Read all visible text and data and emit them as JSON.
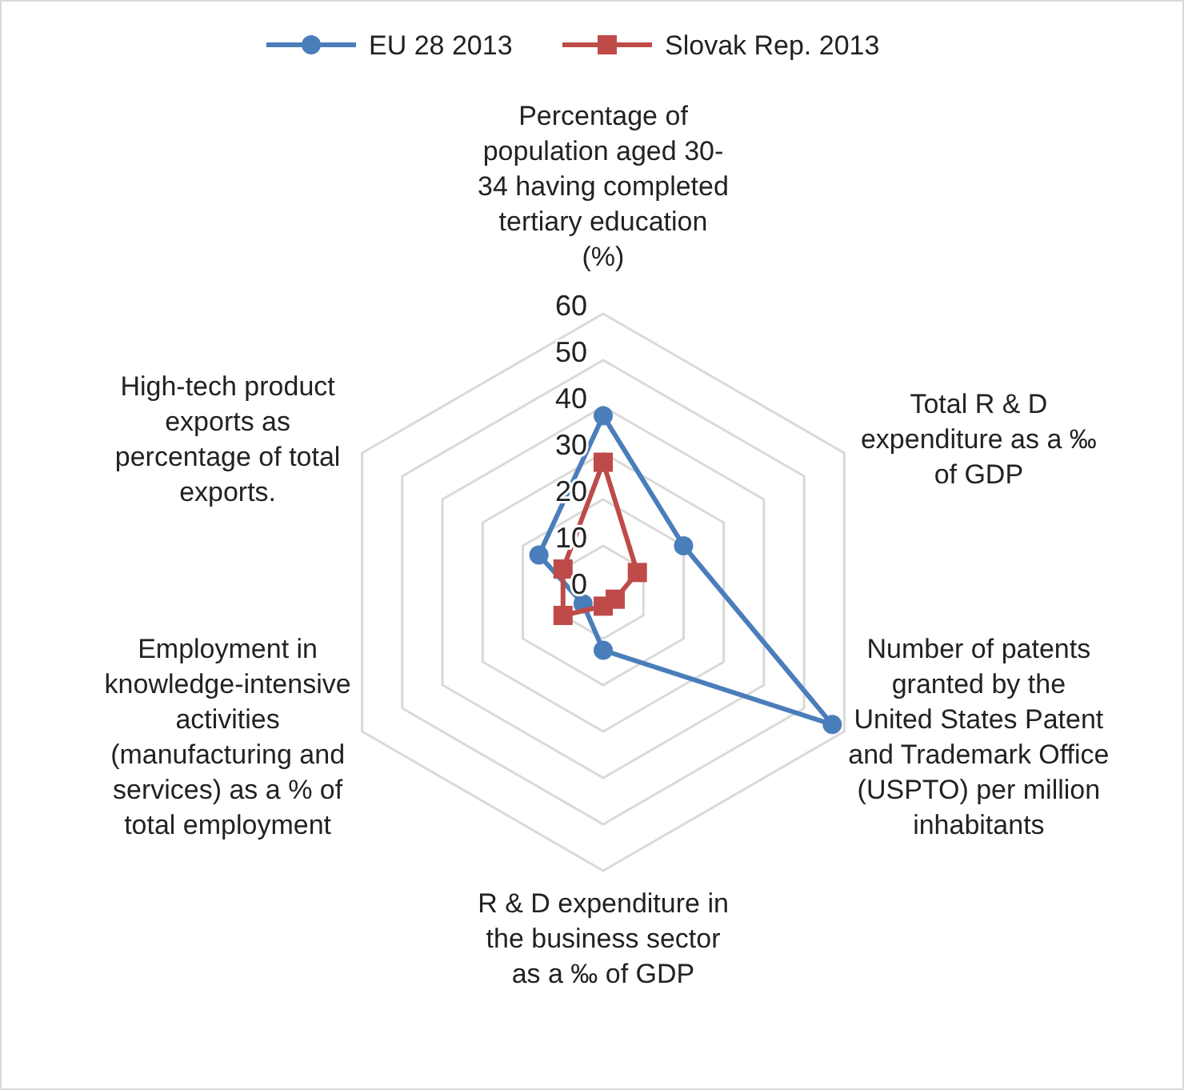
{
  "chart_data": {
    "type": "radar",
    "categories": [
      "Percentage of population aged 30-34 having completed tertiary education (%)",
      "Total R & D expenditure as a ‰ of GDP",
      "Number of  patents granted by the United States Patent and Trademark Office (USPTO) per million inhabitants",
      "R & D expenditure in the business sector as a ‰ of GDP",
      "Employment in knowledge-intensive activities (manufacturing and services) as a % of total employment",
      "High-tech product exports as percentage of total exports."
    ],
    "series": [
      {
        "name": "EU 28 2013",
        "color": "#4a7ebb",
        "marker": "circle",
        "values": [
          38,
          20,
          57,
          12.5,
          5,
          16
        ]
      },
      {
        "name": "Slovak Rep. 2013",
        "color": "#be4b48",
        "marker": "square",
        "values": [
          28,
          8.5,
          3,
          3,
          10,
          10
        ]
      }
    ],
    "ylim": [
      0,
      60
    ],
    "yticks": [
      0,
      10,
      20,
      30,
      40,
      50,
      60
    ],
    "grid": true,
    "legend": "top"
  }
}
